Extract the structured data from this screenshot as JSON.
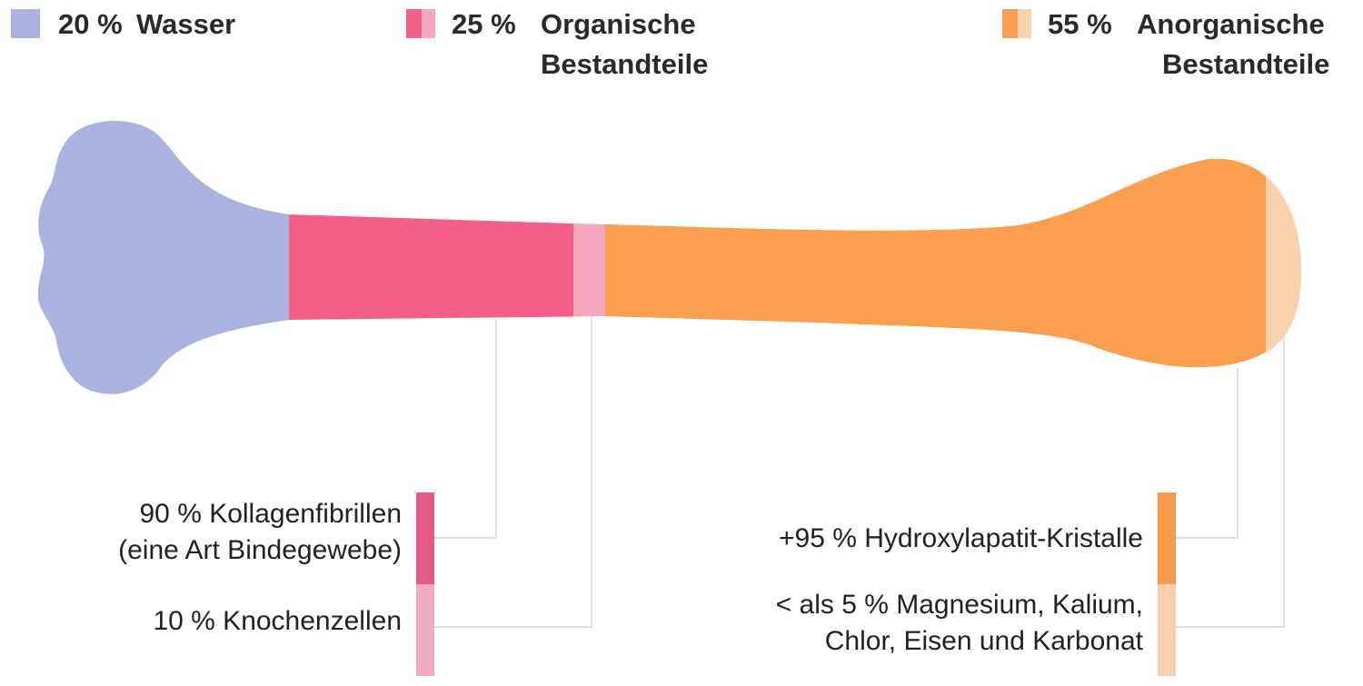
{
  "legend": {
    "water": {
      "percent": "20 %",
      "label": "Wasser",
      "color": "#aab3e0"
    },
    "organic": {
      "percent": "25 %",
      "label_line1": "Organische",
      "label_line2": "Bestandteile",
      "color": "#f35f88",
      "color_light": "#f7a7c0"
    },
    "inorganic": {
      "percent": "55 %",
      "label_line1": "Anorganische",
      "label_line2": "Bestandteile",
      "color": "#f99f4f",
      "color_light": "#fad1ad"
    }
  },
  "organic_breakdown": {
    "collagen_line1": "90 % Kollagenfibrillen",
    "collagen_line2": "(eine Art Bindegewebe)",
    "cells": "10 % Knochenzellen"
  },
  "inorganic_breakdown": {
    "hydroxylapatite": "+95 % Hydroxylapatit-Kristalle",
    "minerals_line1": "< als 5 % Magnesium, Kalium,",
    "minerals_line2": "Chlor, Eisen und Karbonat"
  }
}
